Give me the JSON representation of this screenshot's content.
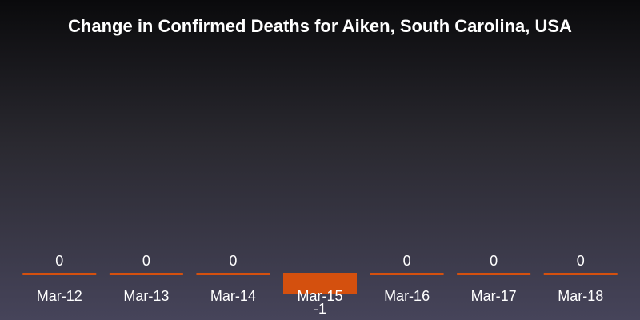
{
  "chart_data": {
    "type": "bar",
    "title": "Change in Confirmed Deaths for Aiken, South Carolina, USA",
    "categories": [
      "Mar-12",
      "Mar-13",
      "Mar-14",
      "Mar-15",
      "Mar-16",
      "Mar-17",
      "Mar-18"
    ],
    "values": [
      0,
      0,
      0,
      -1,
      0,
      0,
      0
    ],
    "data_labels": [
      "0",
      "0",
      "0",
      "-1",
      "0",
      "0",
      "0"
    ],
    "xlabel": "",
    "ylabel": "",
    "ylim": [
      -1,
      0
    ],
    "grid": false,
    "legend": "none",
    "bar_color": "#d4500e",
    "text_color": "#ffffff"
  }
}
